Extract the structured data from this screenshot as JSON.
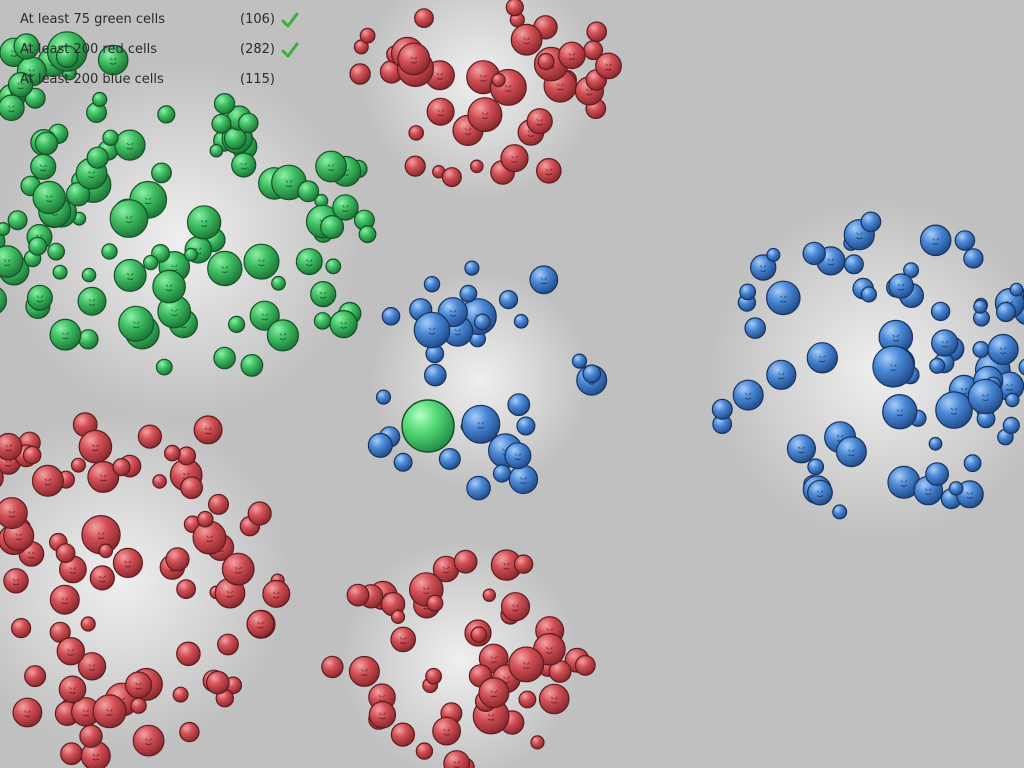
{
  "objectives": [
    {
      "label": "At least 75 green cells",
      "count": "(106)",
      "done": true,
      "check_icon": "checkmark-icon"
    },
    {
      "label": "At least 200 red cells",
      "count": "(282)",
      "done": true,
      "check_icon": "checkmark-icon"
    },
    {
      "label": "At least 200 blue cells",
      "count": "(115)",
      "done": false,
      "check_icon": "checkmark-icon"
    }
  ],
  "colors": {
    "background": "#c0c0c0",
    "green_cell": "#3fbf63",
    "red_cell": "#d24f55",
    "blue_cell": "#3f7fd0",
    "check": "#3fae3f",
    "text": "#2b2b2b"
  }
}
